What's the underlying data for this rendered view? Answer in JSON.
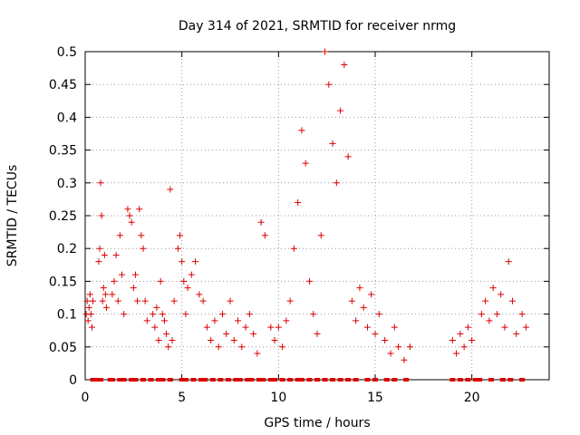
{
  "chart_data": {
    "type": "scatter",
    "title": "Day 314 of 2021, SRMTID for receiver nrmg",
    "xlabel": "GPS time / hours",
    "ylabel": "SRMTID / TECUs",
    "xlim": [
      0,
      24
    ],
    "ylim": [
      0,
      0.5
    ],
    "xticks": [
      0,
      5,
      10,
      15,
      20
    ],
    "xtick_labels": [
      "0",
      "5",
      "10",
      "15",
      "20"
    ],
    "yticks": [
      0,
      0.05,
      0.1,
      0.15,
      0.2,
      0.25,
      0.3,
      0.35,
      0.4,
      0.45,
      0.5
    ],
    "ytick_labels": [
      "0",
      "0.05",
      "0.1",
      "0.15",
      "0.2",
      "0.25",
      "0.3",
      "0.35",
      "0.4",
      "0.45",
      "0.5"
    ],
    "grid": true,
    "marker": "+",
    "color": "#dd0000",
    "series": [
      {
        "name": "SRMTID",
        "x": [
          0.05,
          0.1,
          0.15,
          0.2,
          0.25,
          0.3,
          0.35,
          0.4,
          0.7,
          0.75,
          0.8,
          0.85,
          0.9,
          0.95,
          1.0,
          1.05,
          1.1,
          1.4,
          1.5,
          1.6,
          1.7,
          1.8,
          1.9,
          2.0,
          2.2,
          2.3,
          2.4,
          2.5,
          2.6,
          2.7,
          2.8,
          2.9,
          3.0,
          3.1,
          3.2,
          3.5,
          3.6,
          3.7,
          3.8,
          3.9,
          4.0,
          4.1,
          4.2,
          4.3,
          4.4,
          4.5,
          4.6,
          4.8,
          4.9,
          5.0,
          5.1,
          5.2,
          5.3,
          5.5,
          5.7,
          5.9,
          6.1,
          6.3,
          6.5,
          6.7,
          6.9,
          7.1,
          7.3,
          7.5,
          7.7,
          7.9,
          8.1,
          8.3,
          8.5,
          8.7,
          8.9,
          9.1,
          9.3,
          9.6,
          9.8,
          10.0,
          10.2,
          10.4,
          10.6,
          10.8,
          11.0,
          11.2,
          11.4,
          11.6,
          11.8,
          12.0,
          12.2,
          12.4,
          12.6,
          12.8,
          13.0,
          13.2,
          13.4,
          13.6,
          13.8,
          14.0,
          14.2,
          14.4,
          14.6,
          14.8,
          15.0,
          15.2,
          15.5,
          15.8,
          16.0,
          16.2,
          16.5,
          16.8,
          19.0,
          19.2,
          19.4,
          19.6,
          19.8,
          20.0,
          20.5,
          20.7,
          20.9,
          21.1,
          21.3,
          21.5,
          21.7,
          21.9,
          22.1,
          22.3,
          22.6,
          22.8
        ],
        "y": [
          0.1,
          0.12,
          0.09,
          0.11,
          0.13,
          0.1,
          0.08,
          0.12,
          0.18,
          0.2,
          0.3,
          0.25,
          0.12,
          0.14,
          0.19,
          0.13,
          0.11,
          0.13,
          0.15,
          0.19,
          0.12,
          0.22,
          0.16,
          0.1,
          0.26,
          0.25,
          0.24,
          0.14,
          0.16,
          0.12,
          0.26,
          0.22,
          0.2,
          0.12,
          0.09,
          0.1,
          0.08,
          0.11,
          0.06,
          0.15,
          0.1,
          0.09,
          0.07,
          0.05,
          0.29,
          0.06,
          0.12,
          0.2,
          0.22,
          0.18,
          0.15,
          0.1,
          0.14,
          0.16,
          0.18,
          0.13,
          0.12,
          0.08,
          0.06,
          0.09,
          0.05,
          0.1,
          0.07,
          0.12,
          0.06,
          0.09,
          0.05,
          0.08,
          0.1,
          0.07,
          0.04,
          0.24,
          0.22,
          0.08,
          0.06,
          0.08,
          0.05,
          0.09,
          0.12,
          0.2,
          0.27,
          0.38,
          0.33,
          0.15,
          0.1,
          0.07,
          0.22,
          0.5,
          0.45,
          0.36,
          0.3,
          0.41,
          0.48,
          0.34,
          0.12,
          0.09,
          0.14,
          0.11,
          0.08,
          0.13,
          0.07,
          0.1,
          0.06,
          0.04,
          0.08,
          0.05,
          0.03,
          0.05,
          0.06,
          0.04,
          0.07,
          0.05,
          0.08,
          0.06,
          0.1,
          0.12,
          0.09,
          0.14,
          0.1,
          0.13,
          0.08,
          0.18,
          0.12,
          0.07,
          0.1,
          0.08
        ]
      },
      {
        "name": "zero-level",
        "x": [
          0.4,
          0.5,
          0.6,
          0.7,
          0.8,
          1.3,
          1.4,
          1.8,
          2.0,
          2.4,
          2.5,
          2.6,
          3.0,
          3.4,
          3.8,
          4.0,
          4.4,
          5.0,
          5.2,
          5.6,
          6.0,
          6.2,
          6.6,
          7.0,
          7.4,
          7.8,
          8.0,
          8.4,
          8.6,
          9.0,
          9.2,
          9.6,
          9.8,
          10.2,
          10.6,
          11.0,
          11.2,
          11.6,
          12.0,
          12.4,
          12.8,
          13.2,
          13.6,
          14.0,
          14.6,
          15.0,
          15.6,
          16.0,
          16.6,
          19.0,
          19.4,
          19.8,
          20.2,
          20.4,
          21.0,
          21.6,
          22.0,
          22.6
        ]
      }
    ]
  }
}
